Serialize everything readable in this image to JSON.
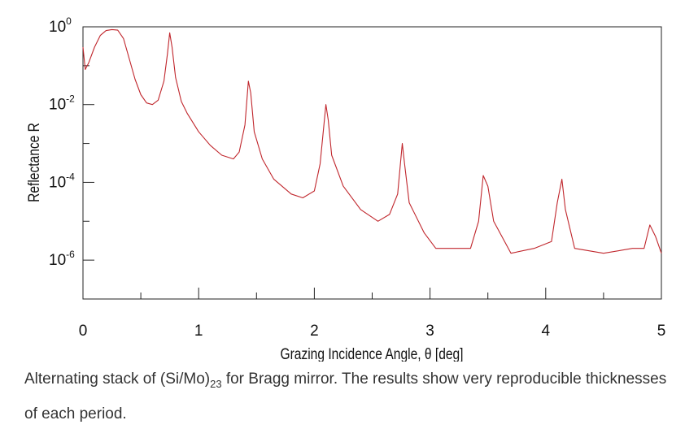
{
  "chart_data": {
    "type": "line",
    "title": "",
    "xlabel": "Grazing Incidence Angle, θ [deg]",
    "ylabel": "Reflectance R",
    "xlim": [
      0,
      5
    ],
    "ylim": [
      1e-07,
      1
    ],
    "yscale": "log",
    "x_ticks": [
      "0",
      "1",
      "2",
      "3",
      "4",
      "5"
    ],
    "y_ticks": [
      {
        "base": "10",
        "exp": "0"
      },
      {
        "base": "10",
        "exp": "-2"
      },
      {
        "base": "10",
        "exp": "-4"
      },
      {
        "base": "10",
        "exp": "-6"
      }
    ],
    "line_color": "#c0262c",
    "grid": false,
    "series": [
      {
        "name": "",
        "points": [
          [
            0.0,
            0.3
          ],
          [
            0.02,
            0.08
          ],
          [
            0.05,
            0.12
          ],
          [
            0.1,
            0.3
          ],
          [
            0.15,
            0.6
          ],
          [
            0.2,
            0.8
          ],
          [
            0.25,
            0.85
          ],
          [
            0.3,
            0.82
          ],
          [
            0.35,
            0.5
          ],
          [
            0.4,
            0.15
          ],
          [
            0.45,
            0.045
          ],
          [
            0.5,
            0.018
          ],
          [
            0.55,
            0.011
          ],
          [
            0.6,
            0.01
          ],
          [
            0.65,
            0.013
          ],
          [
            0.7,
            0.04
          ],
          [
            0.73,
            0.2
          ],
          [
            0.75,
            0.7
          ],
          [
            0.77,
            0.3
          ],
          [
            0.8,
            0.05
          ],
          [
            0.85,
            0.012
          ],
          [
            0.9,
            0.006
          ],
          [
            1.0,
            0.002
          ],
          [
            1.1,
            0.0009
          ],
          [
            1.2,
            0.0005
          ],
          [
            1.3,
            0.0004
          ],
          [
            1.35,
            0.0006
          ],
          [
            1.4,
            0.003
          ],
          [
            1.43,
            0.04
          ],
          [
            1.45,
            0.02
          ],
          [
            1.48,
            0.002
          ],
          [
            1.55,
            0.0004
          ],
          [
            1.65,
            0.00012
          ],
          [
            1.8,
            5e-05
          ],
          [
            1.9,
            4e-05
          ],
          [
            2.0,
            6e-05
          ],
          [
            2.05,
            0.0003
          ],
          [
            2.1,
            0.01
          ],
          [
            2.12,
            0.004
          ],
          [
            2.15,
            0.0005
          ],
          [
            2.25,
            8e-05
          ],
          [
            2.4,
            2e-05
          ],
          [
            2.55,
            1e-05
          ],
          [
            2.65,
            1.5e-05
          ],
          [
            2.72,
            5e-05
          ],
          [
            2.76,
            0.001
          ],
          [
            2.78,
            0.0003
          ],
          [
            2.82,
            3e-05
          ],
          [
            2.95,
            5e-06
          ],
          [
            3.05,
            2e-06
          ],
          [
            3.2,
            2e-06
          ],
          [
            3.35,
            2e-06
          ],
          [
            3.42,
            1e-05
          ],
          [
            3.46,
            0.00015
          ],
          [
            3.5,
            8e-05
          ],
          [
            3.55,
            1e-05
          ],
          [
            3.7,
            1.5e-06
          ],
          [
            3.9,
            2e-06
          ],
          [
            4.05,
            3e-06
          ],
          [
            4.1,
            3e-05
          ],
          [
            4.14,
            0.00012
          ],
          [
            4.17,
            2e-05
          ],
          [
            4.25,
            2e-06
          ],
          [
            4.5,
            1.5e-06
          ],
          [
            4.75,
            2e-06
          ],
          [
            4.85,
            2e-06
          ],
          [
            4.9,
            8e-06
          ],
          [
            4.95,
            4e-06
          ],
          [
            5.0,
            1.5e-06
          ]
        ]
      }
    ]
  },
  "caption": {
    "text_before": "Alternating stack of (Si/Mo)",
    "subscript": "23",
    "text_after": " for Bragg mirror. The results show very reproducible thicknesses of each period."
  }
}
